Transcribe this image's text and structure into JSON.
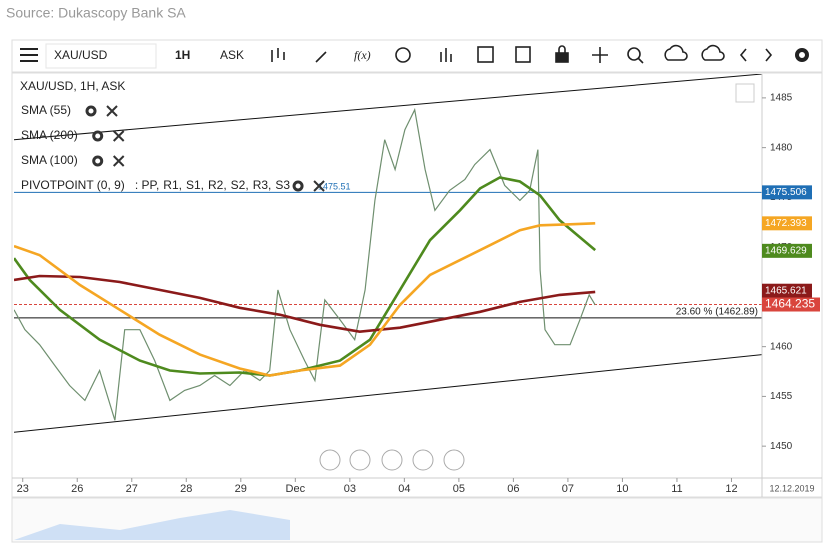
{
  "source": "Source: Dukascopy Bank SA",
  "toolbar": {
    "symbol": "XAU/USD",
    "timeframe": "1H",
    "side": "ASK"
  },
  "chart_data": {
    "type": "line",
    "title": "XAU/USD, 1H, ASK",
    "xlim": [
      -0.16,
      13.56
    ],
    "ylim": [
      1446.8,
      1487.4
    ],
    "yticks": [
      1450,
      1455,
      1460,
      1465,
      1470,
      1475,
      1480,
      1485
    ],
    "xticks": [
      {
        "value": 0,
        "label": "23"
      },
      {
        "value": 1,
        "label": "26"
      },
      {
        "value": 2,
        "label": "27"
      },
      {
        "value": 3,
        "label": "28"
      },
      {
        "value": 4,
        "label": "29"
      },
      {
        "value": 5,
        "label": "Dec"
      },
      {
        "value": 6,
        "label": "03"
      },
      {
        "value": 7,
        "label": "04"
      },
      {
        "value": 8,
        "label": "05"
      },
      {
        "value": 9,
        "label": "06"
      },
      {
        "value": 10,
        "label": "07"
      },
      {
        "value": 11,
        "label": "10"
      },
      {
        "value": 12,
        "label": "11"
      },
      {
        "value": 13,
        "label": "12"
      }
    ],
    "date_label": "12.12.2019",
    "series": [
      {
        "color": "#6f8f6f",
        "x": [
          -0.16,
          0.04,
          0.31,
          0.59,
          0.86,
          1.14,
          1.41,
          1.69,
          1.87,
          2.15,
          2.42,
          2.7,
          2.97,
          3.25,
          3.52,
          3.8,
          4.07,
          4.35,
          4.53,
          4.68,
          4.9,
          5.17,
          5.36,
          5.54,
          5.82,
          6.09,
          6.28,
          6.46,
          6.64,
          6.83,
          7.01,
          7.19,
          7.38,
          7.56,
          7.83,
          8.11,
          8.29,
          8.57,
          8.84,
          9.12,
          9.3,
          9.45,
          9.49,
          9.58,
          9.76,
          10.04,
          10.22,
          10.39,
          10.5
        ],
        "values": [
          1463.7,
          1461.7,
          1460.2,
          1458.1,
          1456.1,
          1454.6,
          1457.6,
          1452.6,
          1461.7,
          1461.7,
          1458.6,
          1454.6,
          1455.6,
          1456.1,
          1457.1,
          1456.1,
          1457.6,
          1456.6,
          1457.6,
          1465.7,
          1461.7,
          1458.6,
          1456.6,
          1464.7,
          1462.7,
          1460.7,
          1465.7,
          1474.7,
          1480.8,
          1477.8,
          1481.8,
          1483.8,
          1477.8,
          1473.7,
          1475.7,
          1476.8,
          1478.3,
          1479.8,
          1476.2,
          1474.7,
          1475.7,
          1479.8,
          1467.7,
          1461.7,
          1460.2,
          1460.2,
          1462.7,
          1465.2,
          1464.2
        ]
      },
      {
        "name": "SMA (55)",
        "color": "#4e8a1e",
        "x": [
          -0.16,
          0.13,
          0.68,
          1.41,
          2.15,
          2.7,
          3.25,
          3.98,
          4.53,
          5.08,
          5.82,
          6.37,
          6.92,
          7.47,
          8.02,
          8.39,
          8.75,
          9.12,
          9.49,
          9.85,
          10.5
        ],
        "values": [
          1468.9,
          1466.7,
          1463.7,
          1460.7,
          1458.6,
          1457.6,
          1457.3,
          1457.4,
          1457.1,
          1457.6,
          1458.6,
          1460.7,
          1465.7,
          1470.7,
          1473.7,
          1475.9,
          1477.0,
          1476.6,
          1475.2,
          1472.7,
          1469.7
        ]
      },
      {
        "name": "SMA (200)",
        "color": "#8b1a1a",
        "x": [
          -0.16,
          0.31,
          1.05,
          1.78,
          2.51,
          3.25,
          3.98,
          4.72,
          5.45,
          6.18,
          6.92,
          7.65,
          8.39,
          9.12,
          9.85,
          10.5
        ],
        "values": [
          1466.7,
          1467.1,
          1467.0,
          1466.5,
          1465.7,
          1464.9,
          1463.9,
          1463.2,
          1462.2,
          1461.5,
          1461.9,
          1462.7,
          1463.5,
          1464.5,
          1465.2,
          1465.5
        ]
      },
      {
        "name": "SMA (100)",
        "color": "#f5a623",
        "x": [
          -0.16,
          0.31,
          1.05,
          1.78,
          2.51,
          3.25,
          3.98,
          4.53,
          5.08,
          5.82,
          6.37,
          6.92,
          7.47,
          8.02,
          8.57,
          9.12,
          9.49,
          10.04,
          10.5
        ],
        "values": [
          1470.1,
          1469.2,
          1466.2,
          1463.7,
          1461.2,
          1459.2,
          1457.8,
          1457.1,
          1457.6,
          1458.1,
          1460.2,
          1464.2,
          1467.2,
          1468.7,
          1470.2,
          1471.7,
          1472.2,
          1472.3,
          1472.4
        ]
      }
    ],
    "pivot": {
      "name": "PIVOTPOINT (0, 9)",
      "lines": [
        {
          "name": ": PP,",
          "color": "#1f6fb5"
        },
        {
          "name": "R1,",
          "color": "#8b1a1a"
        },
        {
          "name": "S1,",
          "color": "#a01010"
        },
        {
          "name": "R2,",
          "color": "#d42020"
        },
        {
          "name": "S2,",
          "color": "#e07020"
        },
        {
          "name": "R3,",
          "color": "#f0a020"
        },
        {
          "name": "S3",
          "color": "#e8d020"
        }
      ],
      "value": 1475.51
    },
    "trendlines": [
      {
        "x": [
          -0.16,
          13.56
        ],
        "values": [
          1480.8,
          1487.4
        ]
      },
      {
        "x": [
          -0.16,
          13.56
        ],
        "values": [
          1451.4,
          1459.2
        ]
      }
    ],
    "fib": {
      "label": "23.60 % (1462.89)",
      "value": 1462.89
    },
    "price_labels": [
      {
        "value": 1475.506,
        "color": "#1f6fb5"
      },
      {
        "value": 1472.393,
        "color": "#f5a623"
      },
      {
        "value": 1469.629,
        "color": "#4e8a1e"
      },
      {
        "value": 1465.621,
        "color": "#8b1a1a"
      },
      {
        "value": 1464.235,
        "color": "#d9453d"
      }
    ]
  }
}
